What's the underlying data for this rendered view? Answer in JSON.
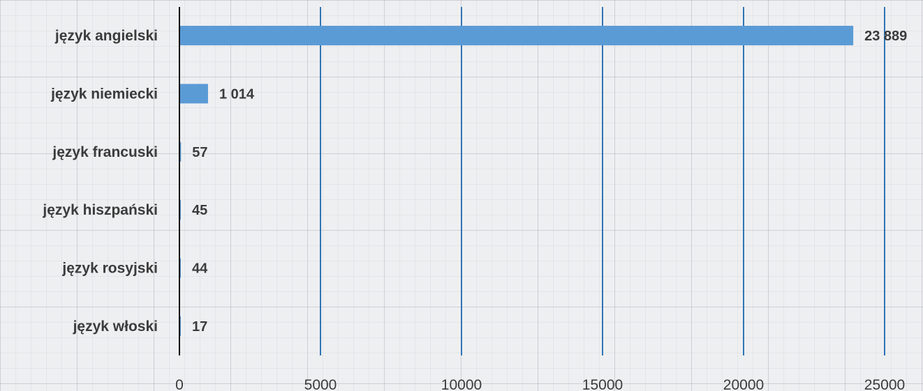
{
  "chart_data": {
    "type": "bar",
    "orientation": "horizontal",
    "categories": [
      "język angielski",
      "język niemiecki",
      "język francuski",
      "język hiszpański",
      "język rosyjski",
      "język włoski"
    ],
    "values": [
      23889,
      1014,
      57,
      45,
      44,
      17
    ],
    "value_labels": [
      "23 889",
      "1 014",
      "57",
      "45",
      "44",
      "17"
    ],
    "xlim": [
      0,
      25000
    ],
    "xticks": [
      0,
      5000,
      10000,
      15000,
      20000,
      25000
    ],
    "xtick_labels": [
      "0",
      "5000",
      "10000",
      "15000",
      "20000",
      "25000"
    ],
    "grid": true,
    "legend": "none"
  },
  "colors": {
    "bar": "#5b9bd5",
    "gridline": "#2e75b6",
    "axis": "#000000",
    "text": "#3b3b3b"
  }
}
